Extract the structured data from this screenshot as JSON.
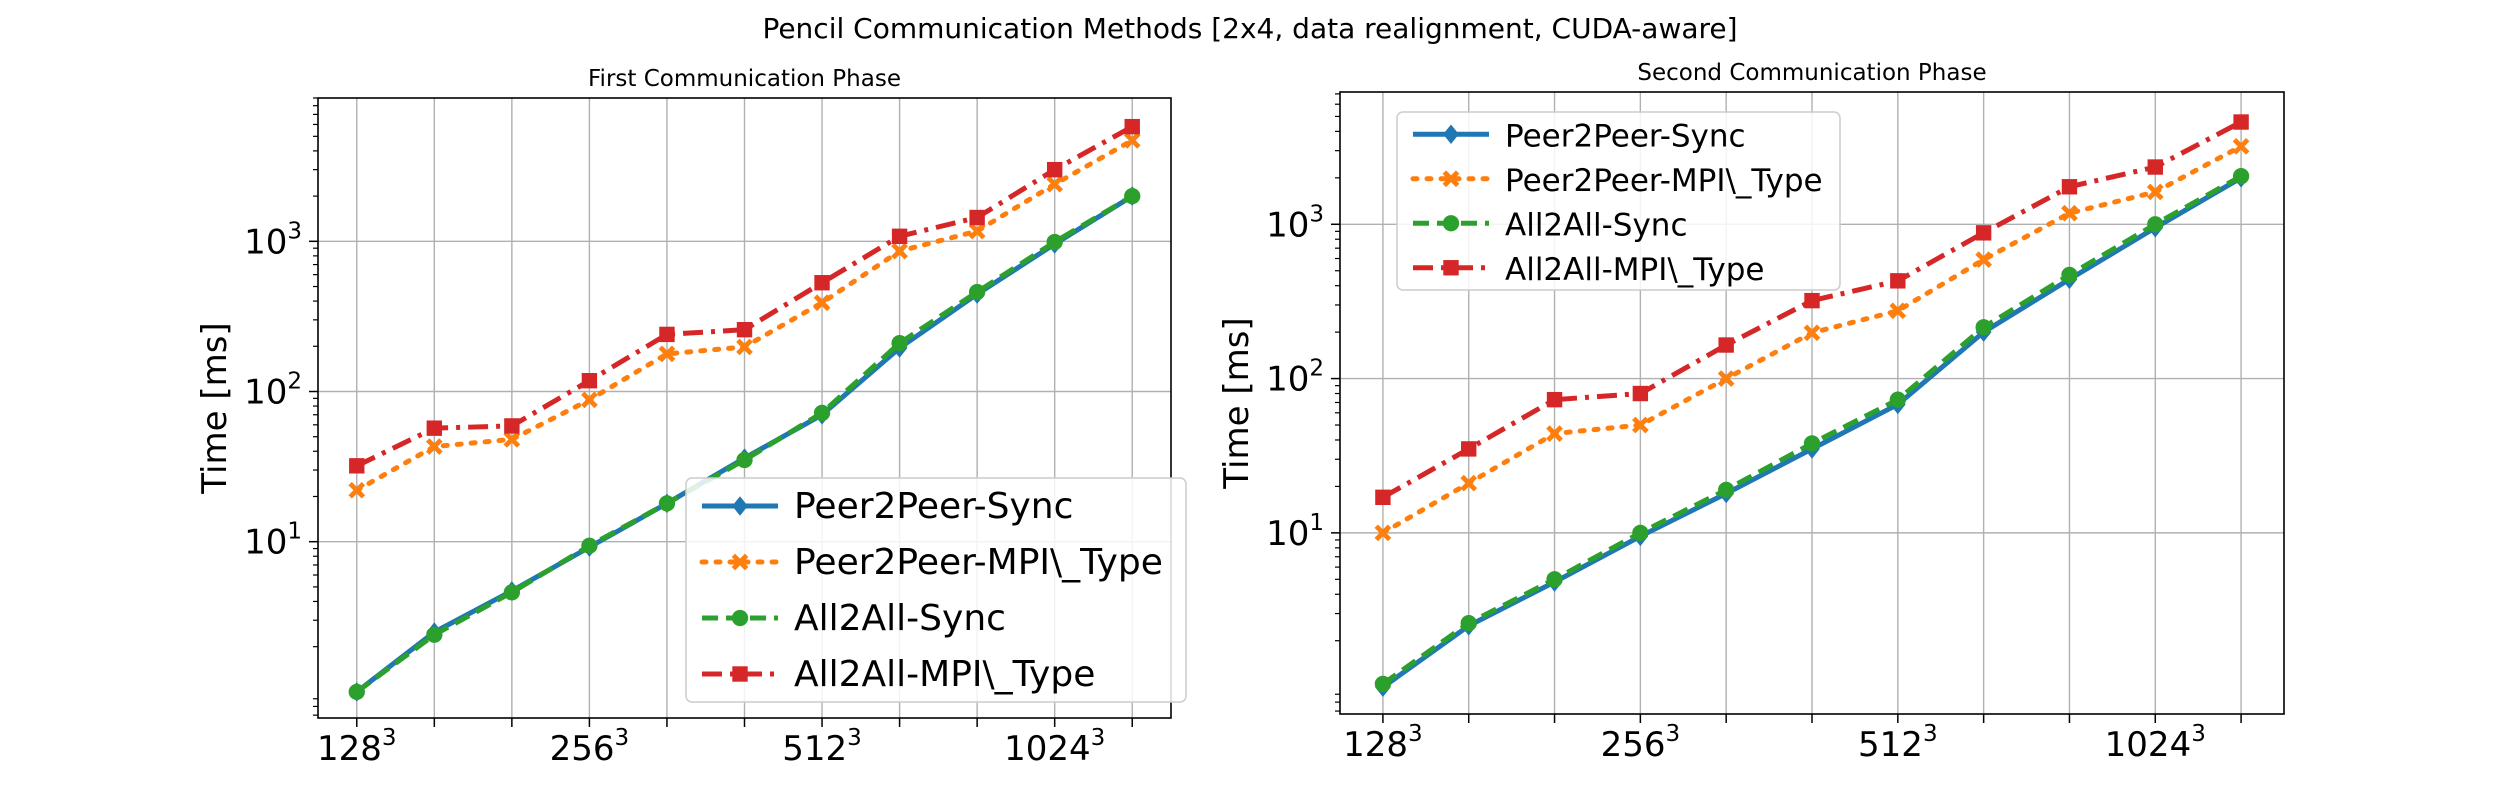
{
  "figure": {
    "suptitle": "Pencil Communication Methods [2x4, data realignment, CUDA-aware]"
  },
  "chart_data": [
    {
      "type": "line",
      "title": "First Communication Phase",
      "xlabel": "",
      "ylabel": "Time [ms]",
      "yscale": "log",
      "ylim": [
        0.67,
        9000
      ],
      "x": [
        1,
        2,
        3,
        4,
        5,
        6,
        7,
        8,
        9,
        10,
        11
      ],
      "xlim": [
        0.5,
        11.5
      ],
      "xticks": [
        {
          "x": 1,
          "base": "128",
          "exp": "3"
        },
        {
          "x": 4,
          "base": "256",
          "exp": "3"
        },
        {
          "x": 7,
          "base": "512",
          "exp": "3"
        },
        {
          "x": 10,
          "base": "1024",
          "exp": "3"
        }
      ],
      "yticks": [
        {
          "value": 10,
          "base": "10",
          "exp": "1"
        },
        {
          "value": 100,
          "base": "10",
          "exp": "2"
        },
        {
          "value": 1000,
          "base": "10",
          "exp": "3"
        }
      ],
      "grid": true,
      "legend_position": "lower-right",
      "series": [
        {
          "name": "Peer2Peer-Sync",
          "color": "#1f77b4",
          "dash": "solid",
          "marker": "diamond",
          "values": [
            1.0,
            2.5,
            4.7,
            9.2,
            18,
            36,
            70,
            195,
            445,
            960,
            2000
          ]
        },
        {
          "name": "Peer2Peer-MPI\\_Type",
          "color": "#ff7f0e",
          "dash": "dotted",
          "marker": "x",
          "values": [
            22,
            43,
            48,
            88,
            178,
            198,
            390,
            860,
            1170,
            2400,
            4700
          ]
        },
        {
          "name": "All2All-Sync",
          "color": "#2ca02c",
          "dash": "dashed",
          "marker": "circle",
          "values": [
            1.0,
            2.4,
            4.6,
            9.4,
            18,
            35,
            72,
            210,
            460,
            990,
            2000
          ]
        },
        {
          "name": "All2All-MPI\\_Type",
          "color": "#d62728",
          "dash": "dashdot",
          "marker": "square",
          "values": [
            32,
            57,
            59,
            118,
            240,
            258,
            530,
            1080,
            1440,
            3000,
            5800
          ]
        }
      ]
    },
    {
      "type": "line",
      "title": "Second Communication Phase",
      "xlabel": "",
      "ylabel": "Time [ms]",
      "yscale": "log",
      "ylim": [
        0.67,
        7200
      ],
      "x": [
        1,
        2,
        3,
        4,
        5,
        6,
        7,
        8,
        9,
        10,
        11
      ],
      "xlim": [
        0.5,
        11.5
      ],
      "xticks": [
        {
          "x": 1,
          "base": "128",
          "exp": "3"
        },
        {
          "x": 4,
          "base": "256",
          "exp": "3"
        },
        {
          "x": 7,
          "base": "512",
          "exp": "3"
        },
        {
          "x": 10,
          "base": "1024",
          "exp": "3"
        }
      ],
      "yticks": [
        {
          "value": 10,
          "base": "10",
          "exp": "1"
        },
        {
          "value": 100,
          "base": "10",
          "exp": "2"
        },
        {
          "value": 1000,
          "base": "10",
          "exp": "3"
        }
      ],
      "grid": true,
      "legend_position": "upper-left",
      "series": [
        {
          "name": "Peer2Peer-Sync",
          "color": "#1f77b4",
          "dash": "solid",
          "marker": "diamond",
          "values": [
            1.0,
            2.5,
            4.8,
            9.5,
            18,
            35,
            68,
            200,
            440,
            950,
            2000
          ]
        },
        {
          "name": "Peer2Peer-MPI\\_Type",
          "color": "#ff7f0e",
          "dash": "dotted",
          "marker": "x",
          "values": [
            10,
            21,
            44,
            50,
            100,
            198,
            275,
            590,
            1180,
            1620,
            3200
          ]
        },
        {
          "name": "All2All-Sync",
          "color": "#2ca02c",
          "dash": "dashed",
          "marker": "circle",
          "values": [
            1.05,
            2.6,
            5.0,
            10,
            19,
            38,
            73,
            215,
            470,
            1000,
            2050
          ]
        },
        {
          "name": "All2All-MPI\\_Type",
          "color": "#d62728",
          "dash": "dashdot",
          "marker": "square",
          "values": [
            17,
            35,
            73,
            80,
            165,
            320,
            430,
            880,
            1750,
            2350,
            4600
          ]
        }
      ]
    }
  ]
}
